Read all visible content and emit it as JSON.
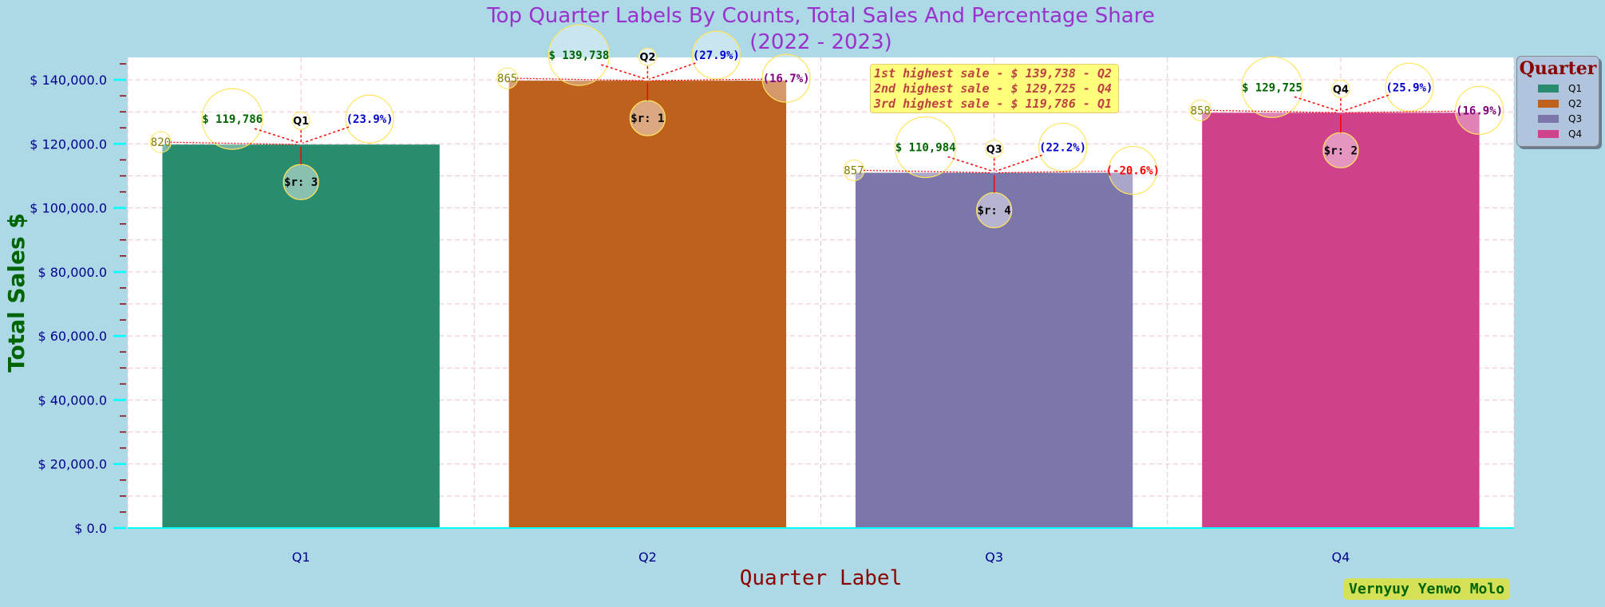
{
  "chart_data": {
    "type": "bar",
    "title": [
      "Top Quarter Labels By Counts, Total Sales And Percentage Share",
      "(2022 - 2023)"
    ],
    "xlabel": "Quarter Label",
    "ylabel": "Total Sales $",
    "categories": [
      "Q1",
      "Q2",
      "Q3",
      "Q4"
    ],
    "values": [
      119786,
      139738,
      110984,
      129725
    ],
    "ylim": [
      0,
      147000
    ],
    "yticks": [
      0,
      20000,
      40000,
      60000,
      80000,
      100000,
      120000,
      140000
    ],
    "ytick_labels": [
      "$ 0.0",
      "$ 20,000.0",
      "$ 40,000.0",
      "$ 60,000.0",
      "$ 80,000.0",
      "$ 100,000.0",
      "$ 120,000.0",
      "$ 140,000.0"
    ],
    "colors": [
      "#2a8c6e",
      "#bd611c",
      "#7c77ab",
      "#d0418c"
    ],
    "grid": true,
    "legend": {
      "title": "Quarter",
      "position": "upper-right, outside plot",
      "entries": [
        "Q1",
        "Q2",
        "Q3",
        "Q4"
      ]
    },
    "bar_annotations": [
      {
        "label": "Q1",
        "sales": "$ 119,786",
        "share": "(23.9%)",
        "count": "820",
        "rank": "$r: 3",
        "change": ""
      },
      {
        "label": "Q2",
        "sales": "$ 139,738",
        "share": "(27.9%)",
        "count": "865",
        "rank": "$r: 1",
        "change": "(16.7%)"
      },
      {
        "label": "Q3",
        "sales": "$ 110,984",
        "share": "(22.2%)",
        "count": "857",
        "rank": "$r: 4",
        "change": "(-20.6%)"
      },
      {
        "label": "Q4",
        "sales": "$ 129,725",
        "share": "(25.9%)",
        "count": "858",
        "rank": "$r: 2",
        "change": "(16.9%)"
      }
    ],
    "highlight_box": [
      "1st highest sale - $ 139,738 - Q2",
      "2nd highest sale - $ 129,725 - Q4",
      "3rd highest sale - $ 119,786 - Q1"
    ],
    "change_colors": [
      "#800080",
      "#ff0000",
      "#800080"
    ]
  },
  "watermark": "Vernyuy Yenwo Molo"
}
